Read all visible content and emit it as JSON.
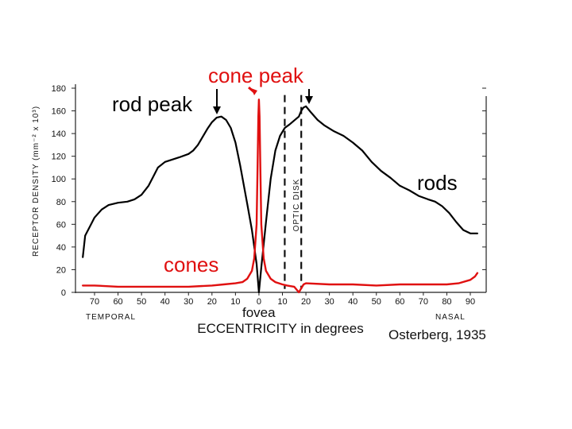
{
  "chart_data": {
    "type": "line",
    "title": "",
    "xlabel": "ECCENTRICITY in degrees",
    "ylabel": "RECEPTOR DENSITY (mm⁻² x 10³)",
    "xlim": [
      -80,
      100
    ],
    "ylim": [
      0,
      180
    ],
    "x_ticks": [
      -70,
      -60,
      -50,
      -40,
      -30,
      -20,
      -10,
      0,
      10,
      20,
      30,
      40,
      50,
      60,
      70,
      80,
      90
    ],
    "x_tick_labels": [
      "70",
      "60",
      "50",
      "40",
      "30",
      "20",
      "10",
      "0",
      "10",
      "20",
      "30",
      "40",
      "50",
      "60",
      "70",
      "80",
      "90"
    ],
    "y_ticks": [
      0,
      20,
      40,
      60,
      80,
      100,
      120,
      140,
      160,
      180
    ],
    "y_tick_labels": [
      "0",
      "20",
      "40",
      "60",
      "80",
      "100",
      "120",
      "140",
      "160",
      "180"
    ],
    "x_side_labels": {
      "left": "TEMPORAL",
      "right": "NASAL"
    },
    "series": [
      {
        "name": "rods",
        "color": "#000000",
        "x": [
          -75,
          -74,
          -72,
          -70,
          -67,
          -64,
          -60,
          -56,
          -53,
          -50,
          -47,
          -45,
          -43,
          -40,
          -37,
          -34,
          -30,
          -28,
          -26,
          -24,
          -22,
          -20,
          -18,
          -16,
          -14,
          -12,
          -10,
          -8,
          -5,
          -3,
          -1,
          0,
          1,
          3,
          5,
          7,
          9,
          11,
          13,
          17,
          18,
          19,
          20,
          22,
          25,
          28,
          32,
          36,
          40,
          44,
          48,
          52,
          56,
          60,
          64,
          68,
          72,
          75,
          78,
          81,
          84,
          87,
          90,
          92,
          93
        ],
        "values": [
          31,
          50,
          58,
          66,
          73,
          77,
          79,
          80,
          82,
          86,
          94,
          102,
          110,
          115,
          117,
          119,
          122,
          125,
          130,
          137,
          144,
          150,
          154,
          155,
          152,
          145,
          132,
          112,
          78,
          55,
          25,
          0,
          22,
          62,
          100,
          125,
          138,
          145,
          148,
          155,
          160,
          163,
          164,
          159,
          152,
          147,
          142,
          138,
          132,
          125,
          115,
          107,
          101,
          94,
          90,
          85,
          82,
          80,
          76,
          70,
          62,
          55,
          52,
          52,
          52
        ]
      },
      {
        "name": "cones",
        "color": "#e01010",
        "x": [
          -75,
          -70,
          -60,
          -50,
          -40,
          -30,
          -20,
          -15,
          -10,
          -7,
          -5,
          -3,
          -2,
          -1,
          -0.6,
          -0.25,
          0,
          0.25,
          0.6,
          1,
          2,
          3,
          5,
          7,
          10,
          12,
          15,
          17,
          19,
          20,
          30,
          40,
          50,
          60,
          70,
          80,
          85,
          90,
          92,
          93
        ],
        "values": [
          6,
          6,
          5,
          5,
          5,
          5,
          6,
          7,
          8,
          9,
          12,
          19,
          30,
          60,
          110,
          155,
          170,
          155,
          110,
          60,
          30,
          19,
          12,
          9,
          7,
          6,
          5,
          0,
          7,
          8,
          7,
          7,
          6,
          7,
          7,
          7,
          8,
          11,
          14,
          17
        ]
      }
    ],
    "optic_disc": {
      "x_range": [
        12,
        17
      ],
      "label": "OPTIC DISK"
    },
    "annotations": [
      {
        "text": "cone peak",
        "color": "#e01010"
      },
      {
        "text": "rod peak",
        "color": "#000000"
      },
      {
        "text": "rods",
        "color": "#000000"
      },
      {
        "text": "cones",
        "color": "#e01010"
      },
      {
        "text": "fovea",
        "color": "#000000"
      },
      {
        "text": "Osterberg, 1935",
        "color": "#2b3fb8"
      }
    ]
  }
}
